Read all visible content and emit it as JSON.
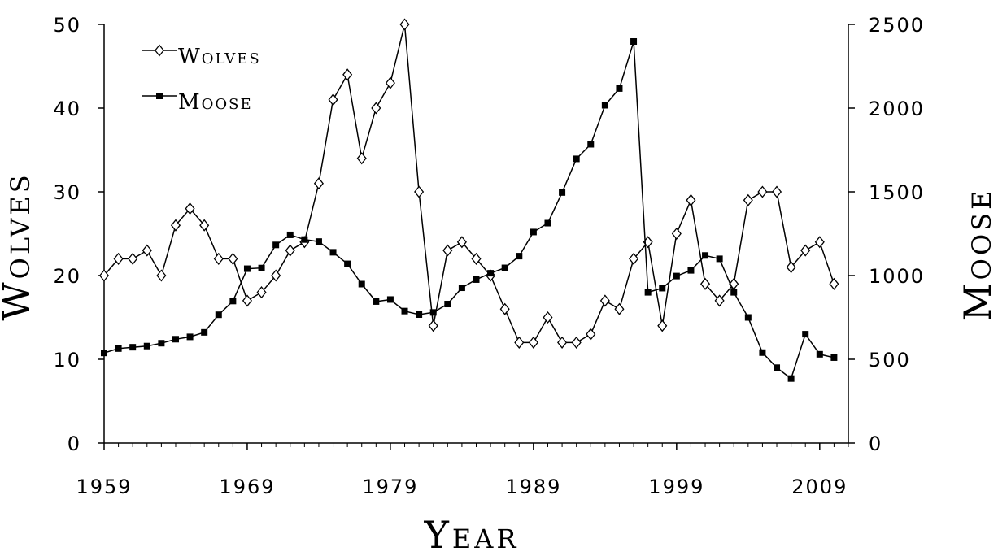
{
  "chart_data": {
    "type": "line",
    "xlabel": "Year",
    "ylabel_left": "Wolves",
    "ylabel_right": "Moose",
    "xlim": [
      1959,
      2011
    ],
    "ylim_left": [
      0,
      50
    ],
    "ylim_right": [
      0,
      2500
    ],
    "xticks": [
      1959,
      1969,
      1979,
      1989,
      1999,
      2009
    ],
    "yticks_left": [
      0,
      10,
      20,
      30,
      40,
      50
    ],
    "yticks_right": [
      0,
      500,
      1000,
      1500,
      2000,
      2500
    ],
    "grid": false,
    "legend": "top-left",
    "x": [
      1959,
      1960,
      1961,
      1962,
      1963,
      1964,
      1965,
      1966,
      1967,
      1968,
      1969,
      1970,
      1971,
      1972,
      1973,
      1974,
      1975,
      1976,
      1977,
      1978,
      1979,
      1980,
      1981,
      1982,
      1983,
      1984,
      1985,
      1986,
      1987,
      1988,
      1989,
      1990,
      1991,
      1992,
      1993,
      1994,
      1995,
      1996,
      1997,
      1998,
      1999,
      2000,
      2001,
      2002,
      2003,
      2004,
      2005,
      2006,
      2007,
      2008,
      2009,
      2010
    ],
    "series": [
      {
        "name": "Wolves",
        "axis": "left",
        "marker": "open-diamond",
        "values": [
          20,
          22,
          22,
          23,
          20,
          26,
          28,
          26,
          22,
          22,
          17,
          18,
          20,
          23,
          24,
          31,
          41,
          44,
          34,
          40,
          43,
          50,
          30,
          14,
          23,
          24,
          22,
          20,
          16,
          12,
          12,
          15,
          12,
          12,
          13,
          17,
          16,
          22,
          24,
          14,
          25,
          29,
          19,
          17,
          19,
          29,
          30,
          30,
          21,
          23,
          24,
          19
        ]
      },
      {
        "name": "Moose",
        "axis": "right",
        "marker": "filled-square",
        "values": [
          538,
          564,
          572,
          579,
          596,
          620,
          634,
          661,
          766,
          848,
          1041,
          1045,
          1183,
          1243,
          1215,
          1203,
          1139,
          1070,
          949,
          845,
          857,
          788,
          767,
          780,
          830,
          927,
          976,
          1014,
          1046,
          1116,
          1260,
          1313,
          1496,
          1697,
          1784,
          2017,
          2117,
          2398,
          900,
          925,
          997,
          1031,
          1120,
          1100,
          900,
          750,
          540,
          450,
          385,
          650,
          530,
          510
        ]
      }
    ]
  }
}
